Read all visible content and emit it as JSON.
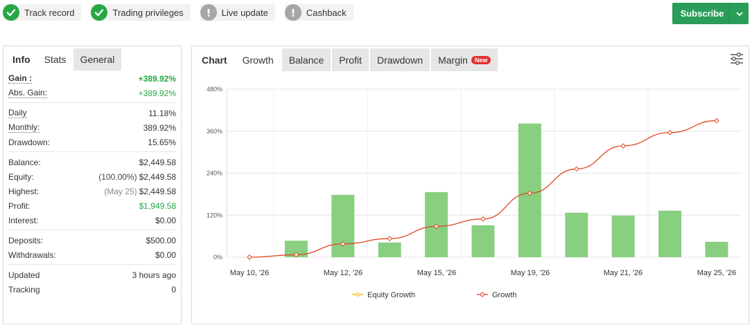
{
  "badges": [
    {
      "label": "Track record",
      "status": "ok"
    },
    {
      "label": "Trading privileges",
      "status": "ok"
    },
    {
      "label": "Live update",
      "status": "warn"
    },
    {
      "label": "Cashback",
      "status": "warn"
    }
  ],
  "subscribe": {
    "label": "Subscribe"
  },
  "left_panel": {
    "tabs": [
      "Info",
      "Stats",
      "General"
    ],
    "gain": {
      "label": "Gain :",
      "value": "+389.92%"
    },
    "abs_gain": {
      "label": "Abs. Gain:",
      "value": "+389.92%"
    },
    "daily": {
      "label": "Daily",
      "value": "11.18%"
    },
    "monthly": {
      "label": "Monthly:",
      "value": "389.92%"
    },
    "drawdown": {
      "label": "Drawdown:",
      "value": "15.65%"
    },
    "balance": {
      "label": "Balance:",
      "value": "$2,449.58"
    },
    "equity": {
      "label": "Equity:",
      "note": "(100.00%)",
      "value": "$2,449.58"
    },
    "highest": {
      "label": "Highest:",
      "note": "(May 25)",
      "value": "$2,449.58"
    },
    "profit": {
      "label": "Profit:",
      "value": "$1,949.58"
    },
    "interest": {
      "label": "Interest:",
      "value": "$0.00"
    },
    "deposits": {
      "label": "Deposits:",
      "value": "$500.00"
    },
    "withdrawals": {
      "label": "Withdrawals:",
      "value": "$0.00"
    },
    "updated": {
      "label": "Updated",
      "value": "3 hours ago"
    },
    "tracking": {
      "label": "Tracking",
      "value": "0"
    }
  },
  "right_panel": {
    "tabs": [
      "Chart",
      "Growth",
      "Balance",
      "Profit",
      "Drawdown",
      "Margin"
    ],
    "new_badge": "New",
    "settings_icon": "sliders-icon"
  },
  "colors": {
    "green": "#27a744",
    "bar": "#88cf7f",
    "line": "#e0451f",
    "equity": "#f0b400"
  },
  "chart_data": {
    "type": "bar",
    "x_ticks": [
      "May 10, '26",
      "May 12, '26",
      "May 15, '26",
      "May 19, '26",
      "May 21, '26",
      "May 25, '26"
    ],
    "y_ticks": [
      "0%",
      "120%",
      "240%",
      "360%",
      "480%"
    ],
    "ylim": [
      0,
      480
    ],
    "grid": true,
    "legend_placement": "bottom",
    "series": [
      {
        "name": "Equity Growth",
        "kind": "line",
        "color": "#f0b400",
        "values": []
      },
      {
        "name": "Growth",
        "kind": "line",
        "color": "#e0451f",
        "values": [
          0,
          7,
          38,
          53,
          88,
          109,
          183,
          252,
          318,
          356,
          390
        ]
      }
    ],
    "bars": [
      0,
      47,
      178,
      42,
      186,
      91,
      382,
      127,
      119,
      133,
      44
    ]
  }
}
